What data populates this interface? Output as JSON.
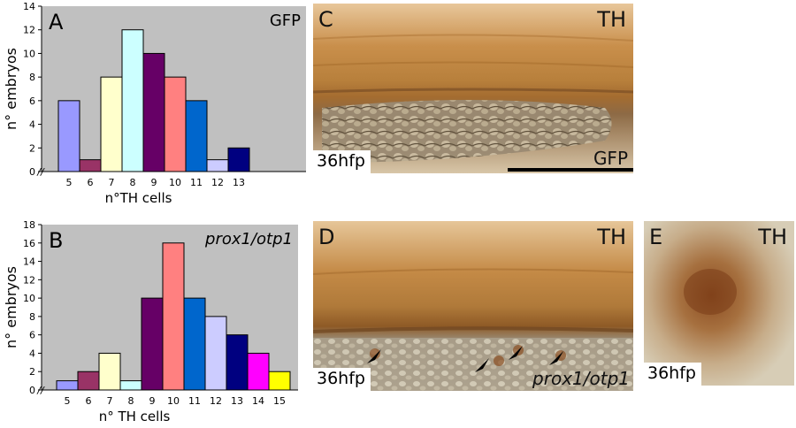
{
  "charts": [
    {
      "id": "A",
      "panel_letter": "A",
      "condition": "GFP",
      "type": "bar",
      "categories": [
        "5",
        "6",
        "7",
        "8",
        "9",
        "10",
        "11",
        "12",
        "13"
      ],
      "values": [
        6,
        1,
        8,
        12,
        10,
        8,
        6,
        1,
        2
      ],
      "colors": [
        "#9999FF",
        "#993366",
        "#FFFFCC",
        "#CCFFFF",
        "#660066",
        "#FF8080",
        "#0066CC",
        "#CCCCFF",
        "#000080"
      ],
      "ylim": [
        0,
        14
      ],
      "yticks": [
        "0",
        "2",
        "4",
        "6",
        "8",
        "10",
        "12",
        "14"
      ],
      "xlabel": "n°TH cells",
      "ylabel": "n° embryos",
      "axis_break": "//",
      "condition_italic": false
    },
    {
      "id": "B",
      "panel_letter": "B",
      "condition": "prox1/otp1",
      "type": "bar",
      "categories": [
        "5",
        "6",
        "7",
        "8",
        "9",
        "10",
        "11",
        "12",
        "13",
        "14",
        "15"
      ],
      "values": [
        1,
        2,
        4,
        1,
        10,
        16,
        10,
        8,
        6,
        4,
        2
      ],
      "colors": [
        "#9999FF",
        "#993366",
        "#FFFFCC",
        "#CCFFFF",
        "#660066",
        "#FF8080",
        "#0066CC",
        "#CCCCFF",
        "#000080",
        "#FF00FF",
        "#FFFF00"
      ],
      "ylim": [
        0,
        18
      ],
      "yticks": [
        "0",
        "2",
        "4",
        "6",
        "8",
        "10",
        "12",
        "14",
        "16",
        "18"
      ],
      "xlabel": "n° TH cells",
      "ylabel": "n° embryos",
      "axis_break": "//",
      "condition_italic": true
    }
  ],
  "photos": {
    "C": {
      "letter": "C",
      "stain": "TH",
      "stage": "36hfp",
      "condition": "GFP"
    },
    "D": {
      "letter": "D",
      "stain": "TH",
      "stage": "36hfp",
      "condition": "prox1/otp1"
    },
    "E": {
      "letter": "E",
      "stain": "TH",
      "stage": "36hfp"
    }
  }
}
